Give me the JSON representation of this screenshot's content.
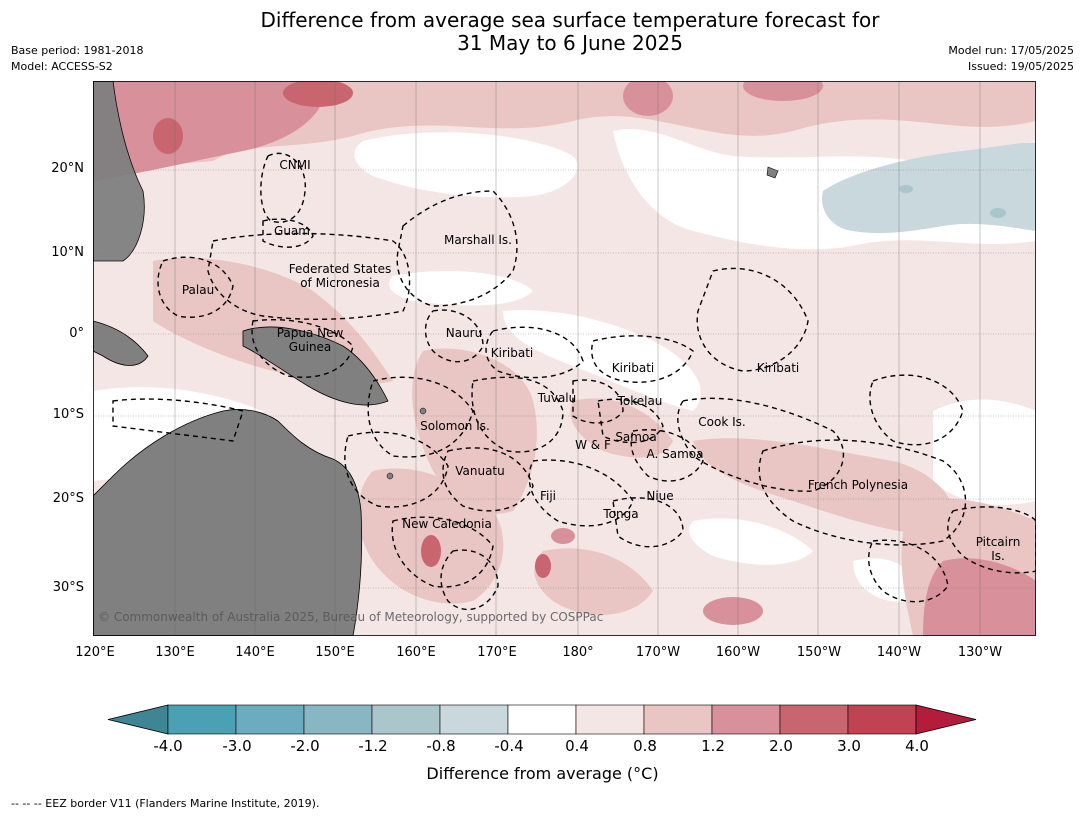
{
  "header": {
    "title_line1": "Difference from average sea surface temperature forecast for",
    "title_line2": "31 May to 6 June 2025",
    "base_period": "Base period: 1981-2018",
    "model": "Model: ACCESS-S2",
    "model_run": "Model run: 17/05/2025",
    "issued": "Issued: 19/05/2025"
  },
  "map": {
    "lat_ticks": [
      "20°N",
      "10°N",
      "0°",
      "10°S",
      "20°S",
      "30°S"
    ],
    "lon_ticks": [
      "120°E",
      "130°E",
      "140°E",
      "150°E",
      "160°E",
      "170°E",
      "180°",
      "170°W",
      "160°W",
      "150°W",
      "140°W",
      "130°W"
    ],
    "regions": [
      {
        "name": "CNMI"
      },
      {
        "name": "Guam"
      },
      {
        "name": "Marshall Is."
      },
      {
        "name": "Federated States\nof Micronesia"
      },
      {
        "name": "Palau"
      },
      {
        "name": "Papua New\nGuinea"
      },
      {
        "name": "Nauru"
      },
      {
        "name": "Kiribati"
      },
      {
        "name": "Kiribati"
      },
      {
        "name": "Kiribati"
      },
      {
        "name": "Tuvalu"
      },
      {
        "name": "Tokelau"
      },
      {
        "name": "Cook Is."
      },
      {
        "name": "Solomon Is."
      },
      {
        "name": "W & F"
      },
      {
        "name": "Samoa"
      },
      {
        "name": "A. Samoa"
      },
      {
        "name": "Vanuatu"
      },
      {
        "name": "Fiji"
      },
      {
        "name": "Niue"
      },
      {
        "name": "Tonga"
      },
      {
        "name": "French Polynesia"
      },
      {
        "name": "New Caledonia"
      },
      {
        "name": "Pitcairn\nIs."
      }
    ],
    "copyright": "© Commonwealth of Australia 2025, Bureau of Meteorology, supported by COSPPac",
    "colors": {
      "land": "#808080",
      "ocean_neutral": "#ffffff",
      "warm_1": "#f4e6e5",
      "warm_2": "#e9c6c3",
      "warm_3": "#d8919a",
      "warm_4": "#c9656f",
      "cool_1": "#c8d8dc"
    }
  },
  "colorbar": {
    "labels": [
      "-4.0",
      "-3.0",
      "-2.0",
      "-1.2",
      "-0.8",
      "-0.4",
      "0.4",
      "0.8",
      "1.2",
      "2.0",
      "3.0",
      "4.0"
    ],
    "colors": [
      "#3e8595",
      "#4ba1b4",
      "#6badbe",
      "#88b6c2",
      "#a9c6cc",
      "#c8d8dc",
      "#ffffff",
      "#f4e6e5",
      "#e9c6c3",
      "#d8919a",
      "#c9656f",
      "#c04352",
      "#b51b3a"
    ],
    "title": "Difference from average (°C)"
  },
  "footer": {
    "eez_note": "--  --  -- EEZ border V11 (Flanders Marine Institute, 2019)."
  }
}
